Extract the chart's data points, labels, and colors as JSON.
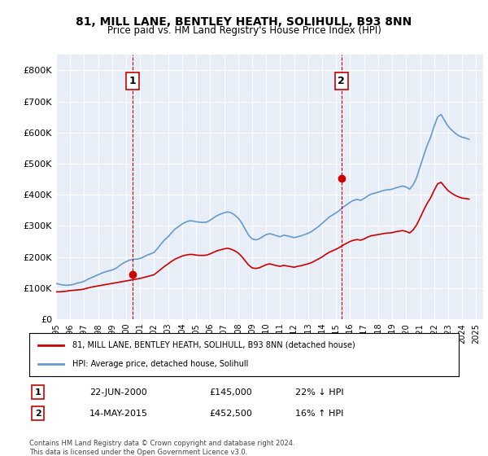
{
  "title": "81, MILL LANE, BENTLEY HEATH, SOLIHULL, B93 8NN",
  "subtitle": "Price paid vs. HM Land Registry's House Price Index (HPI)",
  "ylabel": "",
  "background_color": "#e8eef8",
  "plot_bg_color": "#e8eef8",
  "ylim": [
    0,
    850000
  ],
  "yticks": [
    0,
    100000,
    200000,
    300000,
    400000,
    500000,
    600000,
    700000,
    800000
  ],
  "ytick_labels": [
    "£0",
    "£100K",
    "£200K",
    "£300K",
    "£400K",
    "£500K",
    "£600K",
    "£700K",
    "£800K"
  ],
  "xlim_start": 1995.0,
  "xlim_end": 2025.5,
  "xticks": [
    1995,
    1996,
    1997,
    1998,
    1999,
    2000,
    2001,
    2002,
    2003,
    2004,
    2005,
    2006,
    2007,
    2008,
    2009,
    2010,
    2011,
    2012,
    2013,
    2014,
    2015,
    2016,
    2017,
    2018,
    2019,
    2020,
    2021,
    2022,
    2023,
    2024,
    2025
  ],
  "marker1_x": 2000.47,
  "marker1_y": 145000,
  "marker1_label": "1",
  "marker1_date": "22-JUN-2000",
  "marker1_price": "£145,000",
  "marker1_hpi": "22% ↓ HPI",
  "marker2_x": 2015.37,
  "marker2_y": 452500,
  "marker2_label": "2",
  "marker2_date": "14-MAY-2015",
  "marker2_price": "£452,500",
  "marker2_hpi": "16% ↑ HPI",
  "legend_label1": "81, MILL LANE, BENTLEY HEATH, SOLIHULL, B93 8NN (detached house)",
  "legend_label2": "HPI: Average price, detached house, Solihull",
  "line1_color": "#cc0000",
  "line2_color": "#6699cc",
  "footer": "Contains HM Land Registry data © Crown copyright and database right 2024.\nThis data is licensed under the Open Government Licence v3.0.",
  "hpi_data_x": [
    1995.0,
    1995.25,
    1995.5,
    1995.75,
    1996.0,
    1996.25,
    1996.5,
    1996.75,
    1997.0,
    1997.25,
    1997.5,
    1997.75,
    1998.0,
    1998.25,
    1998.5,
    1998.75,
    1999.0,
    1999.25,
    1999.5,
    1999.75,
    2000.0,
    2000.25,
    2000.5,
    2000.75,
    2001.0,
    2001.25,
    2001.5,
    2001.75,
    2002.0,
    2002.25,
    2002.5,
    2002.75,
    2003.0,
    2003.25,
    2003.5,
    2003.75,
    2004.0,
    2004.25,
    2004.5,
    2004.75,
    2005.0,
    2005.25,
    2005.5,
    2005.75,
    2006.0,
    2006.25,
    2006.5,
    2006.75,
    2007.0,
    2007.25,
    2007.5,
    2007.75,
    2008.0,
    2008.25,
    2008.5,
    2008.75,
    2009.0,
    2009.25,
    2009.5,
    2009.75,
    2010.0,
    2010.25,
    2010.5,
    2010.75,
    2011.0,
    2011.25,
    2011.5,
    2011.75,
    2012.0,
    2012.25,
    2012.5,
    2012.75,
    2013.0,
    2013.25,
    2013.5,
    2013.75,
    2014.0,
    2014.25,
    2014.5,
    2014.75,
    2015.0,
    2015.25,
    2015.5,
    2015.75,
    2016.0,
    2016.25,
    2016.5,
    2016.75,
    2017.0,
    2017.25,
    2017.5,
    2017.75,
    2018.0,
    2018.25,
    2018.5,
    2018.75,
    2019.0,
    2019.25,
    2019.5,
    2019.75,
    2020.0,
    2020.25,
    2020.5,
    2020.75,
    2021.0,
    2021.25,
    2021.5,
    2021.75,
    2022.0,
    2022.25,
    2022.5,
    2022.75,
    2023.0,
    2023.25,
    2023.5,
    2023.75,
    2024.0,
    2024.25,
    2024.5
  ],
  "hpi_data_y": [
    115000,
    112000,
    110000,
    109000,
    110000,
    112000,
    116000,
    118000,
    122000,
    128000,
    133000,
    138000,
    143000,
    148000,
    152000,
    155000,
    158000,
    163000,
    171000,
    179000,
    185000,
    190000,
    192000,
    193000,
    195000,
    200000,
    206000,
    210000,
    215000,
    228000,
    242000,
    255000,
    265000,
    278000,
    290000,
    298000,
    306000,
    312000,
    316000,
    316000,
    313000,
    312000,
    311000,
    312000,
    318000,
    326000,
    333000,
    338000,
    342000,
    345000,
    342000,
    335000,
    325000,
    310000,
    290000,
    270000,
    258000,
    255000,
    258000,
    265000,
    272000,
    275000,
    272000,
    268000,
    265000,
    270000,
    268000,
    265000,
    262000,
    265000,
    268000,
    272000,
    276000,
    282000,
    290000,
    298000,
    308000,
    318000,
    328000,
    335000,
    342000,
    350000,
    360000,
    368000,
    376000,
    382000,
    385000,
    382000,
    388000,
    396000,
    402000,
    405000,
    408000,
    412000,
    415000,
    416000,
    418000,
    422000,
    425000,
    428000,
    425000,
    418000,
    432000,
    455000,
    490000,
    525000,
    558000,
    585000,
    620000,
    650000,
    658000,
    638000,
    620000,
    608000,
    598000,
    590000,
    585000,
    582000,
    578000
  ],
  "price_data_x": [
    1995.0,
    1995.25,
    1995.5,
    1995.75,
    1996.0,
    1996.25,
    1996.5,
    1996.75,
    1997.0,
    1997.25,
    1997.5,
    1997.75,
    1998.0,
    1998.25,
    1998.5,
    1998.75,
    1999.0,
    1999.25,
    1999.5,
    1999.75,
    2000.0,
    2000.25,
    2000.5,
    2000.75,
    2001.0,
    2001.25,
    2001.5,
    2001.75,
    2002.0,
    2002.25,
    2002.5,
    2002.75,
    2003.0,
    2003.25,
    2003.5,
    2003.75,
    2004.0,
    2004.25,
    2004.5,
    2004.75,
    2005.0,
    2005.25,
    2005.5,
    2005.75,
    2006.0,
    2006.25,
    2006.5,
    2006.75,
    2007.0,
    2007.25,
    2007.5,
    2007.75,
    2008.0,
    2008.25,
    2008.5,
    2008.75,
    2009.0,
    2009.25,
    2009.5,
    2009.75,
    2010.0,
    2010.25,
    2010.5,
    2010.75,
    2011.0,
    2011.25,
    2011.5,
    2011.75,
    2012.0,
    2012.25,
    2012.5,
    2012.75,
    2013.0,
    2013.25,
    2013.5,
    2013.75,
    2014.0,
    2014.25,
    2014.5,
    2014.75,
    2015.0,
    2015.25,
    2015.5,
    2015.75,
    2016.0,
    2016.25,
    2016.5,
    2016.75,
    2017.0,
    2017.25,
    2017.5,
    2017.75,
    2018.0,
    2018.25,
    2018.5,
    2018.75,
    2019.0,
    2019.25,
    2019.5,
    2019.75,
    2020.0,
    2020.25,
    2020.5,
    2020.75,
    2021.0,
    2021.25,
    2021.5,
    2021.75,
    2022.0,
    2022.25,
    2022.5,
    2022.75,
    2023.0,
    2023.25,
    2023.5,
    2023.75,
    2024.0,
    2024.25,
    2024.5
  ],
  "price_data_y": [
    88000,
    88000,
    89000,
    90000,
    92000,
    93000,
    94000,
    95000,
    97000,
    100000,
    103000,
    105000,
    107000,
    109000,
    111000,
    113000,
    115000,
    117000,
    119000,
    121000,
    123000,
    125000,
    127000,
    129000,
    131000,
    134000,
    137000,
    140000,
    143000,
    152000,
    161000,
    170000,
    178000,
    186000,
    193000,
    198000,
    203000,
    206000,
    208000,
    208000,
    206000,
    205000,
    205000,
    206000,
    210000,
    215000,
    220000,
    223000,
    226000,
    228000,
    225000,
    220000,
    213000,
    202000,
    188000,
    174000,
    165000,
    163000,
    165000,
    170000,
    175000,
    178000,
    175000,
    172000,
    170000,
    173000,
    171000,
    169000,
    167000,
    170000,
    172000,
    175000,
    178000,
    182000,
    188000,
    194000,
    200000,
    208000,
    215000,
    220000,
    225000,
    231000,
    238000,
    244000,
    250000,
    254000,
    256000,
    254000,
    258000,
    264000,
    268000,
    270000,
    272000,
    274000,
    276000,
    277000,
    278000,
    281000,
    283000,
    285000,
    282000,
    277000,
    287000,
    303000,
    326000,
    350000,
    372000,
    390000,
    414000,
    435000,
    440000,
    426000,
    413000,
    405000,
    398000,
    393000,
    389000,
    388000,
    386000
  ]
}
